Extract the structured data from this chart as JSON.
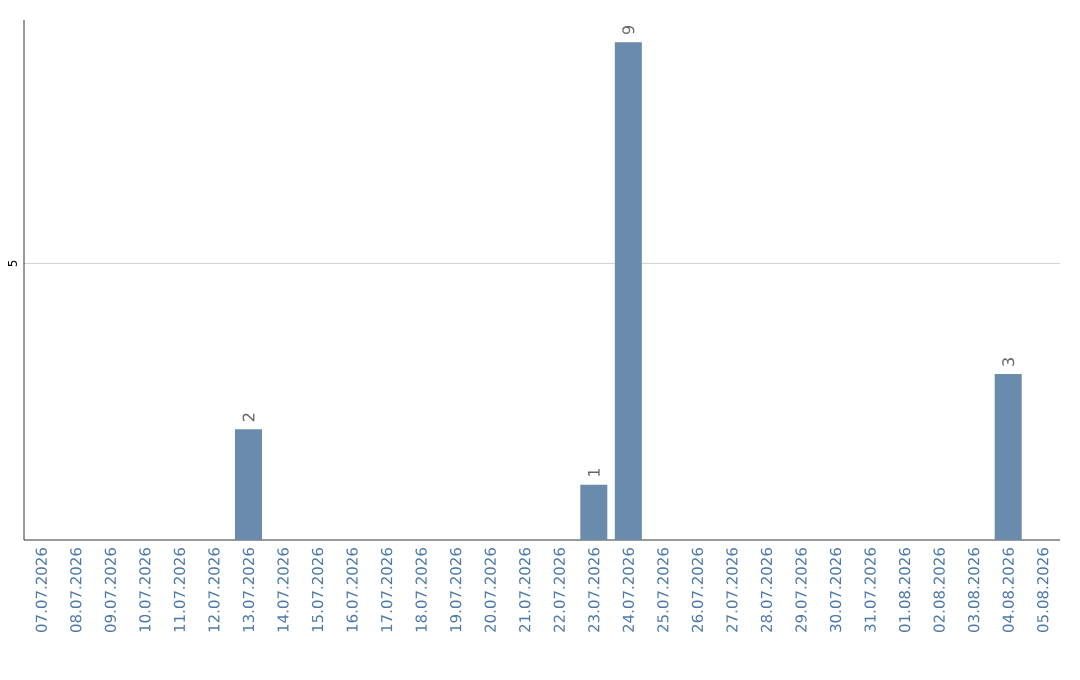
{
  "chart_data": {
    "type": "bar",
    "categories": [
      "07.07.2026",
      "08.07.2026",
      "09.07.2026",
      "10.07.2026",
      "11.07.2026",
      "12.07.2026",
      "13.07.2026",
      "14.07.2026",
      "15.07.2026",
      "16.07.2026",
      "17.07.2026",
      "18.07.2026",
      "19.07.2026",
      "20.07.2026",
      "21.07.2026",
      "22.07.2026",
      "23.07.2026",
      "24.07.2026",
      "25.07.2026",
      "26.07.2026",
      "27.07.2026",
      "28.07.2026",
      "29.07.2026",
      "30.07.2026",
      "31.07.2026",
      "01.08.2026",
      "02.08.2026",
      "03.08.2026",
      "04.08.2026",
      "05.08.2026"
    ],
    "values": [
      0,
      0,
      0,
      0,
      0,
      0,
      2,
      0,
      0,
      0,
      0,
      0,
      0,
      0,
      0,
      0,
      1,
      9,
      0,
      0,
      0,
      0,
      0,
      0,
      0,
      0,
      0,
      0,
      3,
      0
    ],
    "value_labels": [
      null,
      null,
      null,
      null,
      null,
      null,
      "2",
      null,
      null,
      null,
      null,
      null,
      null,
      null,
      null,
      null,
      "1",
      "9",
      null,
      null,
      null,
      null,
      null,
      null,
      null,
      null,
      null,
      null,
      "3",
      null
    ],
    "color": "#6a8bab",
    "ylim": [
      0,
      9.4
    ],
    "yticks": [
      5
    ],
    "grid": "y"
  }
}
